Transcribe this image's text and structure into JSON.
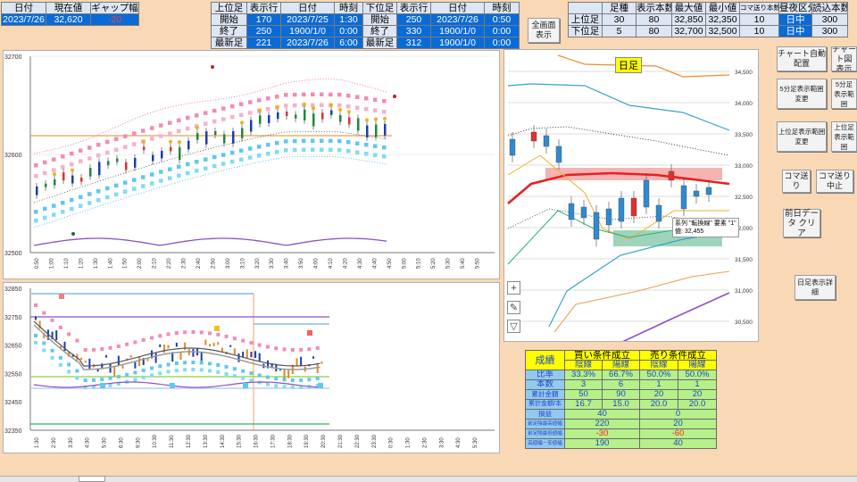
{
  "top_left": {
    "headers": [
      "日付",
      "現在値",
      "ギャップ幅"
    ],
    "row": [
      "2023/7/26",
      "32,620",
      "-20"
    ]
  },
  "upper_table": {
    "headers": [
      "上位足",
      "表示行",
      "日付",
      "時刻",
      "下位足",
      "表示行",
      "日付",
      "時刻"
    ],
    "rows": [
      [
        "開始",
        "170",
        "2023/7/25",
        "1:30",
        "開始",
        "250",
        "2023/7/26",
        "0:50"
      ],
      [
        "終了",
        "250",
        "1900/1/0",
        "0:00",
        "終了",
        "330",
        "1900/1/0",
        "0:00"
      ],
      [
        "最新足",
        "221",
        "2023/7/26",
        "6:00",
        "最新足",
        "312",
        "1900/1/0",
        "0:00"
      ]
    ]
  },
  "fullscreen_button": "全画面表示",
  "right_table": {
    "headers": [
      "",
      "足種",
      "表示本数",
      "最大値",
      "最小値",
      "コマ送り本数",
      "昼夜区分",
      "読込本数"
    ],
    "rows": [
      [
        "上位足",
        "30",
        "80",
        "32,850",
        "32,350",
        "10",
        "日中",
        "300"
      ],
      [
        "下位足",
        "5",
        "80",
        "32,700",
        "32,500",
        "10",
        "日中",
        "300"
      ]
    ]
  },
  "buttons": {
    "chart_auto": "チャート自動配置",
    "chart_2": "チャート図 表示",
    "five_min_range": "5分足表示範囲変更",
    "five_min_2": "5分足 表示範囲",
    "upper_range": "上位足表示範囲変更",
    "upper_2": "上位足 表示範囲",
    "koma_okuri": "コマ送り",
    "koma_stop": "コマ送り 中止",
    "prev_day": "前日データ クリア",
    "daily_detail": "日足表示詳細"
  },
  "chart1": {
    "y_labels": [
      "32700",
      "32600",
      "32500"
    ],
    "x_labels": [
      "0:50",
      "1:00",
      "1:10",
      "1:20",
      "1:30",
      "1:40",
      "1:50",
      "2:00",
      "2:10",
      "2:20",
      "2:30",
      "2:40",
      "2:50",
      "3:00",
      "3:10",
      "3:20",
      "3:30",
      "3:40",
      "3:50",
      "4:00",
      "4:10",
      "4:20",
      "4:30",
      "4:40",
      "4:50",
      "5:00",
      "5:10",
      "5:20",
      "5:30",
      "5:40",
      "5:50"
    ]
  },
  "chart2": {
    "y_labels": [
      "32850",
      "32750",
      "32650",
      "32550",
      "32450",
      "32350"
    ],
    "x_labels": [
      "1:30",
      "2:30",
      "3:30",
      "4:30",
      "5:30",
      "6:30",
      "9:30",
      "10:30",
      "11:30",
      "12:30",
      "13:30",
      "14:30",
      "15:30",
      "16:30",
      "17:30",
      "18:30",
      "19:30",
      "20:30",
      "21:30",
      "22:30",
      "23:30",
      "0:30",
      "1:30",
      "2:30",
      "3:30",
      "4:30",
      "5:30"
    ]
  },
  "daily": {
    "title": "日足",
    "y_labels": [
      "34,500",
      "34,000",
      "33,500",
      "33,000",
      "32,500",
      "32,000",
      "31,500",
      "31,000",
      "30,500"
    ],
    "tooltip_line1": "系列 \"転換線\" 要素 \"1\"",
    "tooltip_line2": "値: 32,455"
  },
  "results": {
    "head": [
      "成績",
      "買い条件成立",
      "売り条件成立"
    ],
    "sub": [
      "陰線",
      "陽線",
      "陰線",
      "陽線"
    ],
    "rows": [
      [
        "比率",
        "33.3%",
        "66.7%",
        "50.0%",
        "50.0%"
      ],
      [
        "本数",
        "3",
        "6",
        "1",
        "1"
      ],
      [
        "累計金額",
        "50",
        "90",
        "20",
        "20"
      ],
      [
        "累計金額/本",
        "16.7",
        "15.0",
        "20.0",
        "20.0"
      ]
    ],
    "rows2": [
      [
        "損益",
        "40",
        "0"
      ],
      [
        "前足陰最高値幅",
        "220",
        "20"
      ],
      [
        "前足陽最低値幅",
        "-30",
        "-60"
      ],
      [
        "高値幅－安値幅",
        "190",
        "40"
      ]
    ]
  },
  "colors": {
    "accent": "#0a6bd6",
    "result_bg": "#ffff00",
    "result_green": "#b6f08a",
    "result_label": "#93c9ef"
  }
}
